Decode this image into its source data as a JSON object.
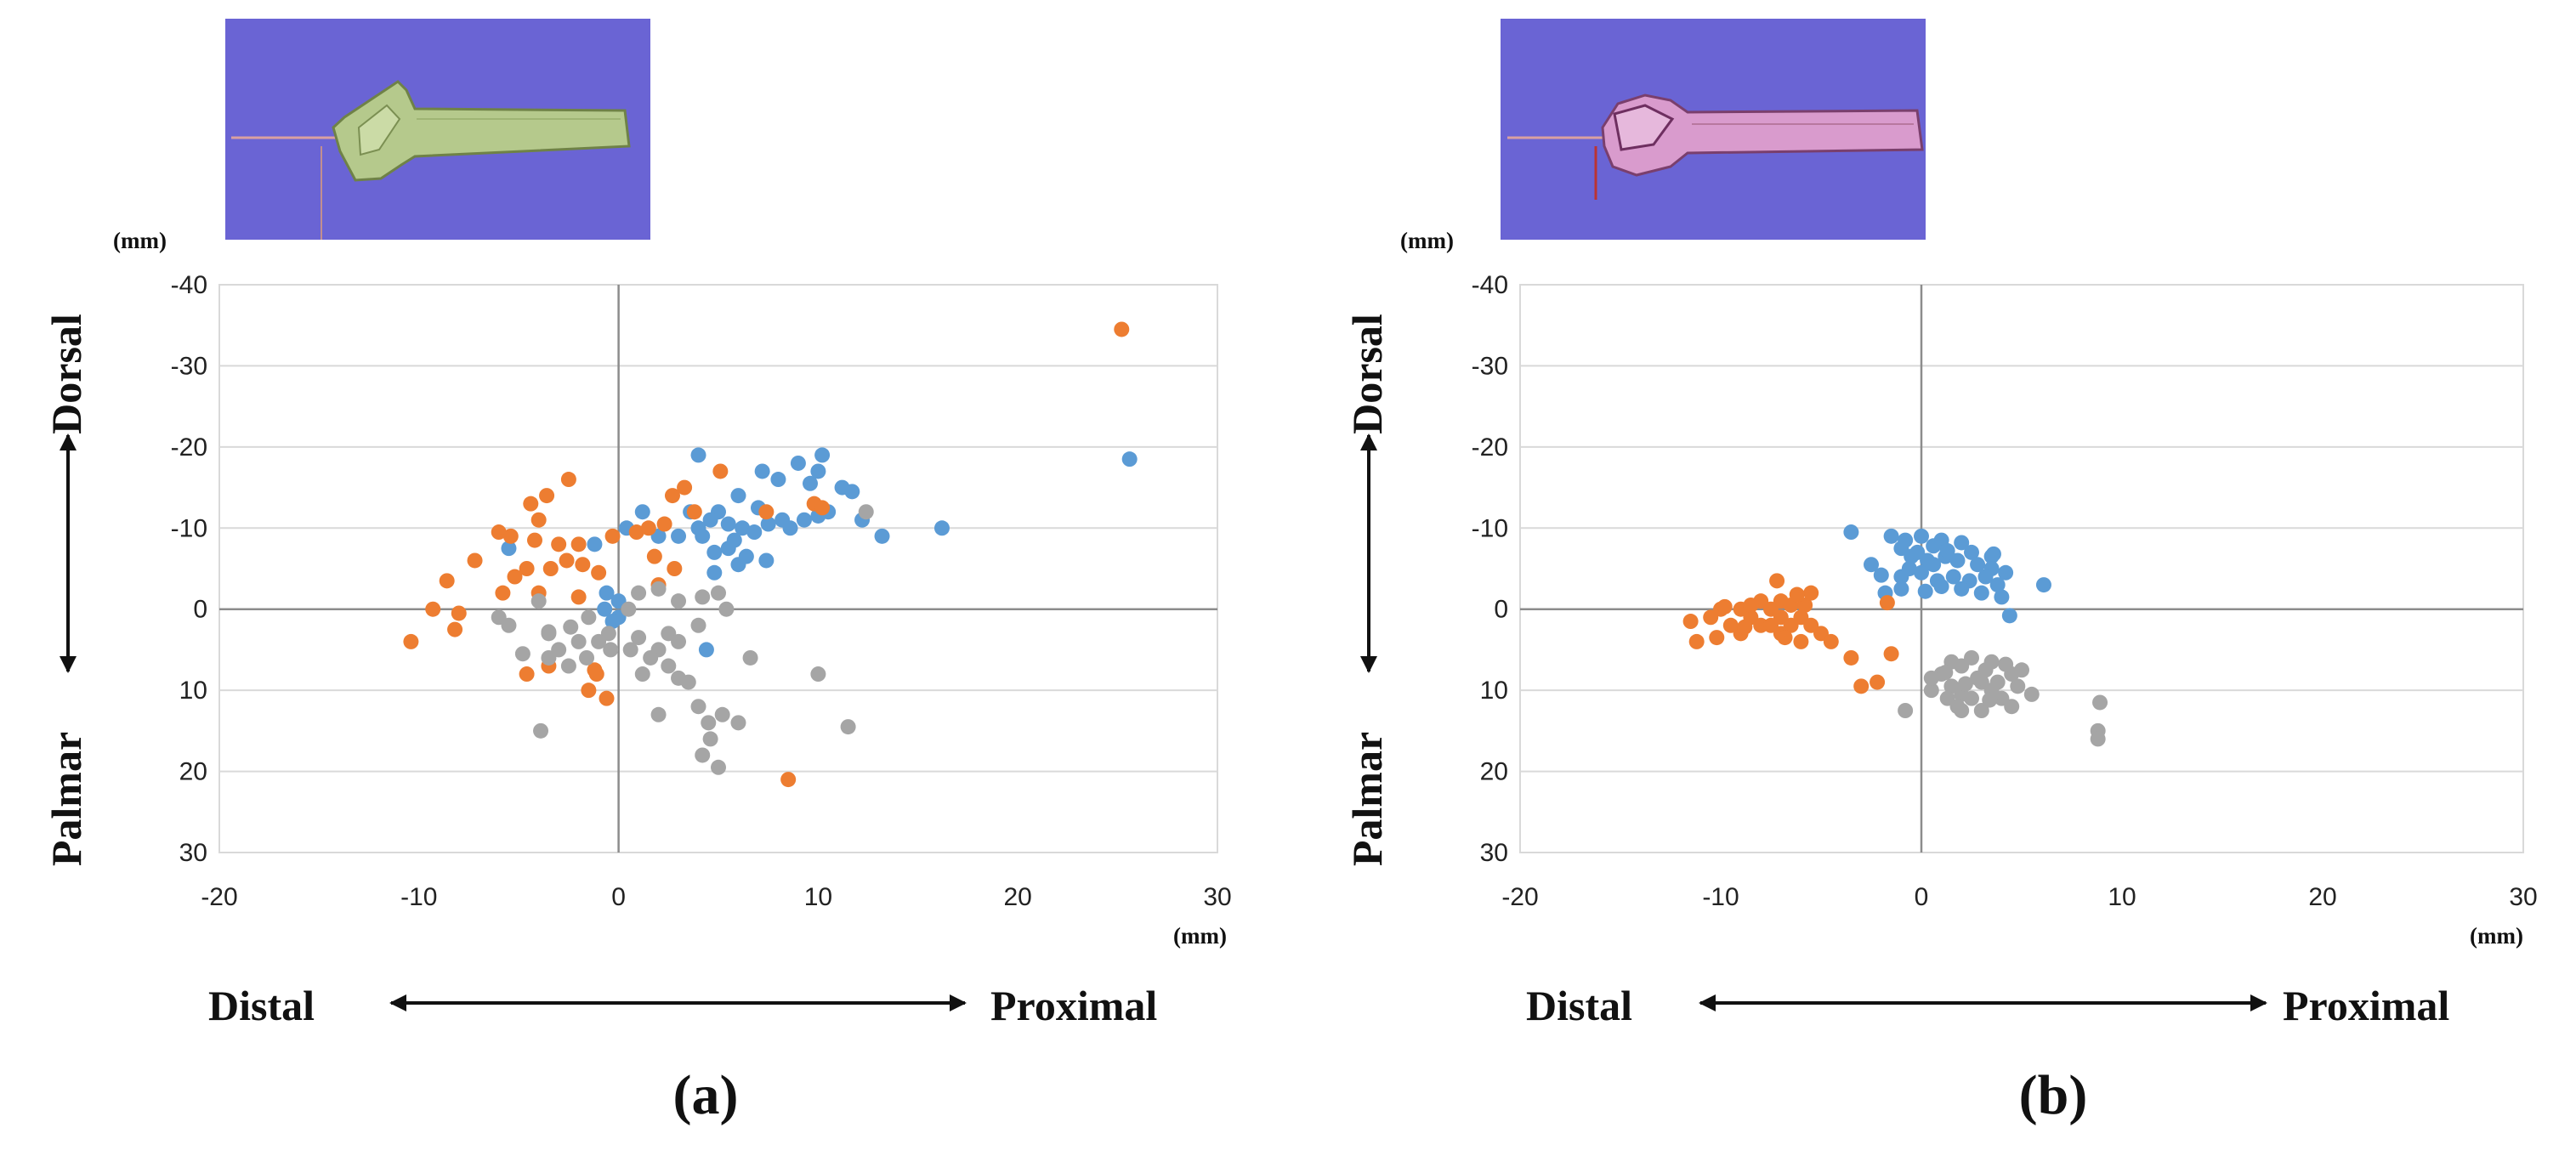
{
  "colors": {
    "series_blue": "#5b9bd5",
    "series_orange": "#ed7d31",
    "series_gray": "#a5a5a5",
    "thumb_background": "#6a64d4",
    "bone_green": "#b5c98c",
    "bone_pink": "#d99bcd",
    "gridline": "#d9d9d9",
    "zero_axis": "#8c8c8c"
  },
  "chart_data": [
    {
      "panel_label": "(a)",
      "type": "scatter",
      "thumbnail_icon": "bone-3d-model-green",
      "title": "",
      "xlabel_left": "Distal",
      "xlabel_right": "Proximal",
      "ylabel_top": "Dorsal",
      "ylabel_bottom": "Palmar",
      "x_unit": "(mm)",
      "y_unit": "(mm)",
      "xlim": [
        -20,
        30
      ],
      "ylim": [
        -40,
        30
      ],
      "y_inverted": true,
      "xticks": [
        -20,
        -10,
        0,
        10,
        20,
        30
      ],
      "yticks": [
        -40,
        -30,
        -20,
        -10,
        0,
        10,
        20,
        30
      ],
      "grid": "horizontal",
      "series": [
        {
          "name": "blue",
          "color": "#5b9bd5",
          "points": [
            [
              4,
              -19
            ],
            [
              10.2,
              -19
            ],
            [
              9,
              -18
            ],
            [
              7.2,
              -17
            ],
            [
              10,
              -17
            ],
            [
              11.2,
              -15
            ],
            [
              8,
              -16
            ],
            [
              9.6,
              -15.5
            ],
            [
              11.7,
              -14.5
            ],
            [
              6,
              -14
            ],
            [
              5,
              -12
            ],
            [
              7,
              -12.5
            ],
            [
              8.2,
              -11
            ],
            [
              9.3,
              -11
            ],
            [
              10,
              -11.5
            ],
            [
              10.5,
              -12
            ],
            [
              3.6,
              -12
            ],
            [
              4.6,
              -11
            ],
            [
              5.5,
              -10.5
            ],
            [
              6.2,
              -10
            ],
            [
              6.8,
              -9.5
            ],
            [
              7.5,
              -10.5
            ],
            [
              8.6,
              -10
            ],
            [
              4,
              -10
            ],
            [
              5.8,
              -8.5
            ],
            [
              3,
              -9
            ],
            [
              2,
              -9
            ],
            [
              0.4,
              -10
            ],
            [
              1.2,
              -12
            ],
            [
              -1.2,
              -8
            ],
            [
              4.8,
              -7
            ],
            [
              5.5,
              -7.5
            ],
            [
              6.4,
              -6.5
            ],
            [
              7.4,
              -6
            ],
            [
              6,
              -5.5
            ],
            [
              4.8,
              -4.5
            ],
            [
              4.2,
              -9
            ],
            [
              13.2,
              -9
            ],
            [
              12.2,
              -11
            ],
            [
              16.2,
              -10
            ],
            [
              25.6,
              -18.5
            ],
            [
              -5.5,
              -7.5
            ],
            [
              -0.6,
              -2
            ],
            [
              0,
              -1
            ],
            [
              0,
              1
            ],
            [
              -0.7,
              0
            ],
            [
              -0.3,
              1.5
            ],
            [
              4.4,
              5
            ]
          ]
        },
        {
          "name": "orange",
          "color": "#ed7d31",
          "points": [
            [
              25.2,
              -34.5
            ],
            [
              -2.5,
              -16
            ],
            [
              -3.6,
              -14
            ],
            [
              -4.4,
              -13
            ],
            [
              -4,
              -11
            ],
            [
              -6,
              -9.5
            ],
            [
              -5.4,
              -9
            ],
            [
              -4.2,
              -8.5
            ],
            [
              -3,
              -8
            ],
            [
              -2,
              -8
            ],
            [
              -2.6,
              -6
            ],
            [
              -3.4,
              -5
            ],
            [
              -4.6,
              -5
            ],
            [
              -5.2,
              -4
            ],
            [
              -5.8,
              -2
            ],
            [
              -4,
              -2
            ],
            [
              -2,
              -1.5
            ],
            [
              -1.8,
              -5.5
            ],
            [
              -1,
              -4.5
            ],
            [
              -0.3,
              -9
            ],
            [
              0.9,
              -9.5
            ],
            [
              1.5,
              -10
            ],
            [
              2.3,
              -10.5
            ],
            [
              3.8,
              -12
            ],
            [
              2.7,
              -14
            ],
            [
              3.3,
              -15
            ],
            [
              5.1,
              -17
            ],
            [
              1.8,
              -6.5
            ],
            [
              2.8,
              -5
            ],
            [
              7.4,
              -12
            ],
            [
              -7.2,
              -6
            ],
            [
              -8.6,
              -3.5
            ],
            [
              -9.3,
              0
            ],
            [
              -8,
              0.5
            ],
            [
              -8.2,
              2.5
            ],
            [
              -10.4,
              4
            ],
            [
              -4.6,
              8
            ],
            [
              -3.5,
              7
            ],
            [
              -1.2,
              7.5
            ],
            [
              -1.1,
              8
            ],
            [
              -1.5,
              10
            ],
            [
              -0.6,
              11
            ],
            [
              2,
              -3
            ],
            [
              9.8,
              -13
            ],
            [
              10.2,
              -12.5
            ],
            [
              8.5,
              21
            ]
          ]
        },
        {
          "name": "gray",
          "color": "#a5a5a5",
          "points": [
            [
              -6,
              1
            ],
            [
              -4,
              -1
            ],
            [
              -1.5,
              1
            ],
            [
              0.5,
              0
            ],
            [
              1,
              -2
            ],
            [
              2,
              -2.5
            ],
            [
              3,
              -1
            ],
            [
              4.2,
              -1.5
            ],
            [
              5,
              -2
            ],
            [
              5.4,
              0
            ],
            [
              6.6,
              6
            ],
            [
              4,
              2
            ],
            [
              2.5,
              3
            ],
            [
              3,
              4
            ],
            [
              2,
              5
            ],
            [
              1.6,
              6
            ],
            [
              2.5,
              7
            ],
            [
              1.2,
              8
            ],
            [
              -0.5,
              3
            ],
            [
              -2,
              4
            ],
            [
              -3,
              5
            ],
            [
              -3.5,
              6
            ],
            [
              -2.5,
              7
            ],
            [
              -3.5,
              3
            ],
            [
              -4.8,
              5.5
            ],
            [
              -5.5,
              2
            ],
            [
              -3.5,
              2.8
            ],
            [
              -2.4,
              2.2
            ],
            [
              -1.6,
              6
            ],
            [
              -1,
              4
            ],
            [
              -0.4,
              5
            ],
            [
              0.6,
              5
            ],
            [
              1,
              3.5
            ],
            [
              3.5,
              9
            ],
            [
              4,
              12
            ],
            [
              4.5,
              14
            ],
            [
              5.2,
              13
            ],
            [
              6,
              14
            ],
            [
              4.6,
              16
            ],
            [
              4.2,
              18
            ],
            [
              5,
              19.5
            ],
            [
              3,
              8.5
            ],
            [
              2,
              13
            ],
            [
              -3.9,
              15
            ],
            [
              10,
              8
            ],
            [
              12.4,
              -12
            ],
            [
              11.5,
              14.5
            ]
          ]
        }
      ]
    },
    {
      "panel_label": "(b)",
      "type": "scatter",
      "thumbnail_icon": "bone-3d-model-pink",
      "title": "",
      "xlabel_left": "Distal",
      "xlabel_right": "Proximal",
      "ylabel_top": "Dorsal",
      "ylabel_bottom": "Palmar",
      "x_unit": "(mm)",
      "y_unit": "(mm)",
      "xlim": [
        -20,
        30
      ],
      "ylim": [
        -40,
        30
      ],
      "y_inverted": true,
      "xticks": [
        -20,
        -10,
        0,
        10,
        20,
        30
      ],
      "yticks": [
        -40,
        -30,
        -20,
        -10,
        0,
        10,
        20,
        30
      ],
      "grid": "horizontal",
      "series": [
        {
          "name": "blue",
          "color": "#5b9bd5",
          "points": [
            [
              -3.5,
              -9.5
            ],
            [
              -1.5,
              -9
            ],
            [
              -0.8,
              -8.5
            ],
            [
              0,
              -9
            ],
            [
              1,
              -8.5
            ],
            [
              2,
              -8.2
            ],
            [
              3.5,
              -6.5
            ],
            [
              -1,
              -7.5
            ],
            [
              -0.5,
              -6.5
            ],
            [
              0.3,
              -6
            ],
            [
              1.2,
              -6.5
            ],
            [
              1.8,
              -6
            ],
            [
              2.5,
              -7
            ],
            [
              3.5,
              -5
            ],
            [
              4.2,
              -4.5
            ],
            [
              -2.5,
              -5.5
            ],
            [
              -2,
              -4.2
            ],
            [
              -1,
              -4
            ],
            [
              0,
              -4.5
            ],
            [
              0.8,
              -3.5
            ],
            [
              1.6,
              -4
            ],
            [
              2.4,
              -3.5
            ],
            [
              3.2,
              -4
            ],
            [
              3.8,
              -3
            ],
            [
              -1,
              -2.5
            ],
            [
              0.2,
              -2.2
            ],
            [
              1,
              -2.8
            ],
            [
              2,
              -2.5
            ],
            [
              3,
              -2
            ],
            [
              4,
              -1.5
            ],
            [
              6.1,
              -3
            ],
            [
              -1.8,
              -2
            ],
            [
              0.6,
              -5.5
            ],
            [
              -0.2,
              -7
            ],
            [
              0.6,
              -7.8
            ],
            [
              1.3,
              -7.2
            ],
            [
              -0.6,
              -5
            ],
            [
              2.8,
              -5.5
            ],
            [
              3.6,
              -6.8
            ],
            [
              4.4,
              0.8
            ]
          ]
        },
        {
          "name": "orange",
          "color": "#ed7d31",
          "points": [
            [
              -10,
              0
            ],
            [
              -9,
              0
            ],
            [
              -10.5,
              1
            ],
            [
              -9.5,
              2
            ],
            [
              -8.5,
              1
            ],
            [
              -8,
              -1
            ],
            [
              -7.5,
              0
            ],
            [
              -7,
              1
            ],
            [
              -7,
              -1
            ],
            [
              -6.5,
              2
            ],
            [
              -6,
              1
            ],
            [
              -5.5,
              2
            ],
            [
              -5,
              3
            ],
            [
              -6,
              4
            ],
            [
              -7,
              3
            ],
            [
              -8,
              2
            ],
            [
              -9,
              3
            ],
            [
              -8.5,
              -0.5
            ],
            [
              -7.5,
              2
            ],
            [
              -6.5,
              -0.5
            ],
            [
              -5.8,
              -0.5
            ],
            [
              -6.8,
              3.5
            ],
            [
              -11.5,
              1.5
            ],
            [
              -11.2,
              4
            ],
            [
              -10.2,
              3.5
            ],
            [
              -7.2,
              -3.5
            ],
            [
              -5.5,
              -2
            ],
            [
              -1.5,
              5.5
            ],
            [
              -4.5,
              4
            ],
            [
              -3.5,
              6
            ],
            [
              -3,
              9.5
            ],
            [
              -2.2,
              9
            ],
            [
              -1.7,
              -0.8
            ],
            [
              -6.2,
              -1.8
            ],
            [
              -9.8,
              -0.3
            ],
            [
              -8.8,
              2.2
            ]
          ]
        },
        {
          "name": "gray",
          "color": "#a5a5a5",
          "points": [
            [
              -0.8,
              12.5
            ],
            [
              0.5,
              10
            ],
            [
              1,
              8
            ],
            [
              1.5,
              9.5
            ],
            [
              2,
              10.5
            ],
            [
              2.5,
              11
            ],
            [
              3,
              9
            ],
            [
              3.5,
              10
            ],
            [
              4,
              11
            ],
            [
              4.5,
              12
            ],
            [
              3,
              12.5
            ],
            [
              2,
              12.5
            ],
            [
              1.3,
              11
            ],
            [
              5.5,
              10.5
            ],
            [
              4.5,
              8
            ],
            [
              3.2,
              7.5
            ],
            [
              2,
              7
            ],
            [
              2.5,
              6
            ],
            [
              3.5,
              6.5
            ],
            [
              1.5,
              6.5
            ],
            [
              0.5,
              8.5
            ],
            [
              3.8,
              9
            ],
            [
              4.2,
              6.8
            ],
            [
              5,
              7.5
            ],
            [
              2.8,
              8.5
            ],
            [
              1.2,
              7.8
            ],
            [
              4.8,
              9.5
            ],
            [
              2.2,
              9.2
            ],
            [
              3.4,
              11.2
            ],
            [
              8.9,
              11.5
            ],
            [
              8.8,
              15
            ],
            [
              8.8,
              16
            ],
            [
              1.8,
              12
            ]
          ]
        }
      ]
    }
  ]
}
